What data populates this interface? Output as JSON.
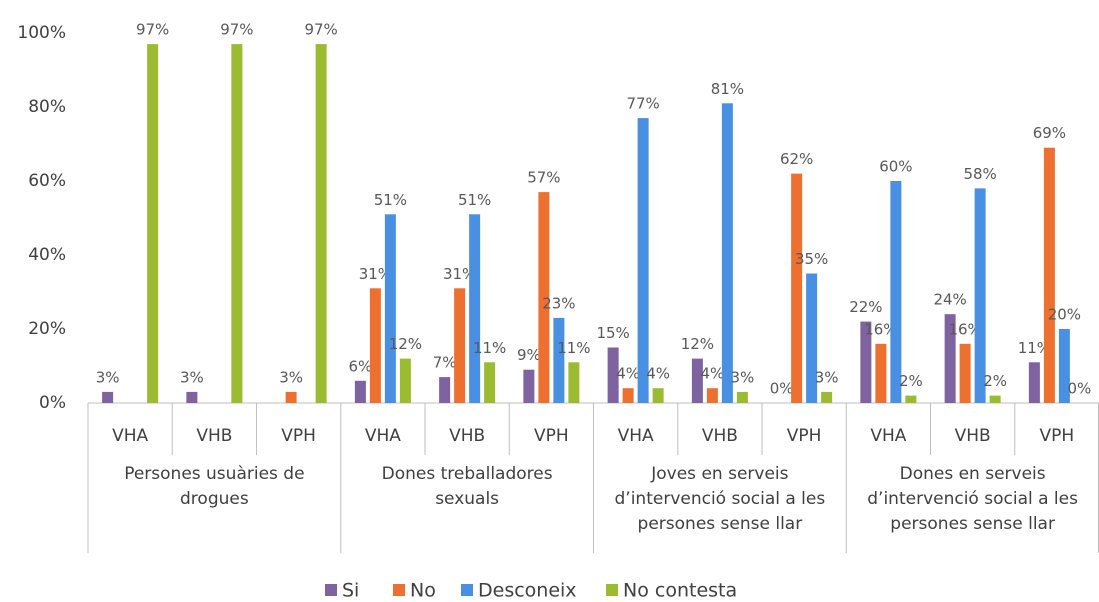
{
  "chart_data": {
    "type": "bar",
    "groups": [
      {
        "name": "Persones usuàries de drogues",
        "categories": [
          "VHA",
          "VHB",
          "VPH"
        ]
      },
      {
        "name": "Dones treballadores sexuals",
        "categories": [
          "VHA",
          "VHB",
          "VPH"
        ]
      },
      {
        "name": "Joves en serveis d’intervenció social a les persones sense llar",
        "categories": [
          "VHA",
          "VHB",
          "VPH"
        ]
      },
      {
        "name": "Dones en serveis d’intervenció social a les persones sense llar",
        "categories": [
          "VHA",
          "VHB",
          "VPH"
        ]
      }
    ],
    "series": [
      {
        "name": "Si",
        "color": "#7f62a0",
        "values": [
          3,
          3,
          0,
          6,
          7,
          9,
          15,
          12,
          0,
          22,
          24,
          11
        ],
        "value_labels": [
          "3%",
          "3%",
          null,
          "6%",
          "7%",
          "9%",
          "15%",
          "12%",
          "0%",
          "22%",
          "24%",
          "11%"
        ]
      },
      {
        "name": "No",
        "color": "#ed7030",
        "values": [
          0,
          0,
          3,
          31,
          31,
          57,
          4,
          4,
          62,
          16,
          16,
          69
        ],
        "value_labels": [
          null,
          null,
          "3%",
          "31%",
          "31%",
          "57%",
          "4%",
          "4%",
          "62%",
          "16%",
          "16%",
          "69%"
        ]
      },
      {
        "name": "Desconeix",
        "color": "#4a90e2",
        "values": [
          0,
          0,
          0,
          51,
          51,
          23,
          77,
          81,
          35,
          60,
          58,
          20
        ],
        "value_labels": [
          null,
          null,
          null,
          "51%",
          "51%",
          "23%",
          "77%",
          "81%",
          "35%",
          "60%",
          "58%",
          "20%"
        ]
      },
      {
        "name": "No contesta",
        "color": "#9bbb30",
        "values": [
          97,
          97,
          97,
          12,
          11,
          11,
          4,
          3,
          3,
          2,
          2,
          0
        ],
        "value_labels": [
          "97%",
          "97%",
          "97%",
          "12%",
          "11%",
          "11%",
          "4%",
          "3%",
          "3%",
          "2%",
          "2%",
          "0%"
        ]
      }
    ],
    "ylim": [
      0,
      100
    ],
    "yticks": [
      {
        "value": 0,
        "label": "0%"
      },
      {
        "value": 20,
        "label": "20%"
      },
      {
        "value": 40,
        "label": "40%"
      },
      {
        "value": 60,
        "label": "60%"
      },
      {
        "value": 80,
        "label": "80%"
      },
      {
        "value": 100,
        "label": "100%"
      }
    ],
    "grid": false,
    "legend": "bottom"
  }
}
